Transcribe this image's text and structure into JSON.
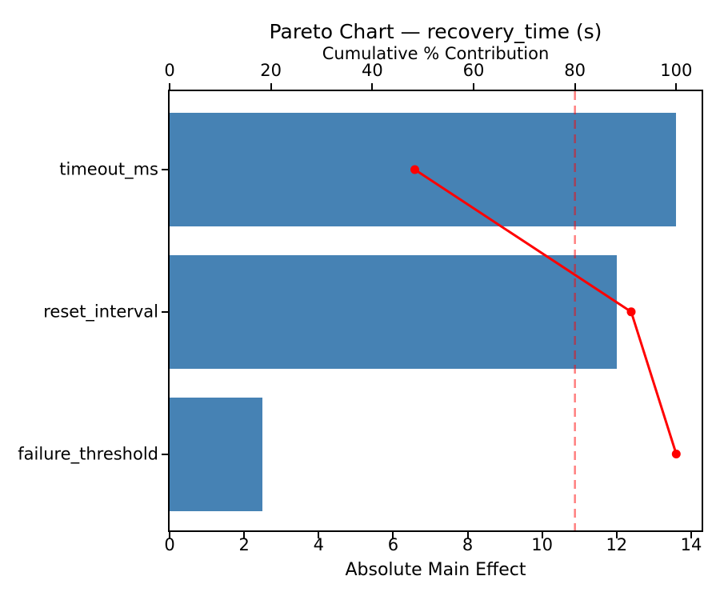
{
  "chart_data": {
    "type": "bar",
    "subtype": "pareto-horizontal",
    "title": "Pareto Chart — recovery_time (s)",
    "categories": [
      "timeout_ms",
      "reset_interval",
      "failure_threshold"
    ],
    "series": [
      {
        "name": "Absolute Main Effect",
        "type": "barh",
        "values": [
          13.6,
          12.0,
          2.5
        ]
      },
      {
        "name": "Cumulative % Contribution",
        "type": "line",
        "marker": "o",
        "values_pct": [
          48.4,
          91.1,
          100.0
        ]
      }
    ],
    "threshold_line": {
      "value_pct": 80,
      "style": "dashed",
      "orientation": "vertical"
    },
    "bottom_axis": {
      "label": "Absolute Main Effect",
      "ticks": [
        0,
        2,
        4,
        6,
        8,
        10,
        12,
        14
      ],
      "range": [
        0,
        14.28
      ]
    },
    "top_axis": {
      "label": "Cumulative % Contribution",
      "ticks": [
        0,
        20,
        40,
        60,
        80,
        100
      ],
      "range": [
        0,
        105
      ]
    },
    "grid": false,
    "legend": "none",
    "colors": {
      "bar": "#4682B4",
      "cumulative_line": "#FF0000",
      "threshold_line": "#FF0000",
      "threshold_opacity": 0.5,
      "text": "#000000",
      "background": "#FFFFFF"
    }
  }
}
